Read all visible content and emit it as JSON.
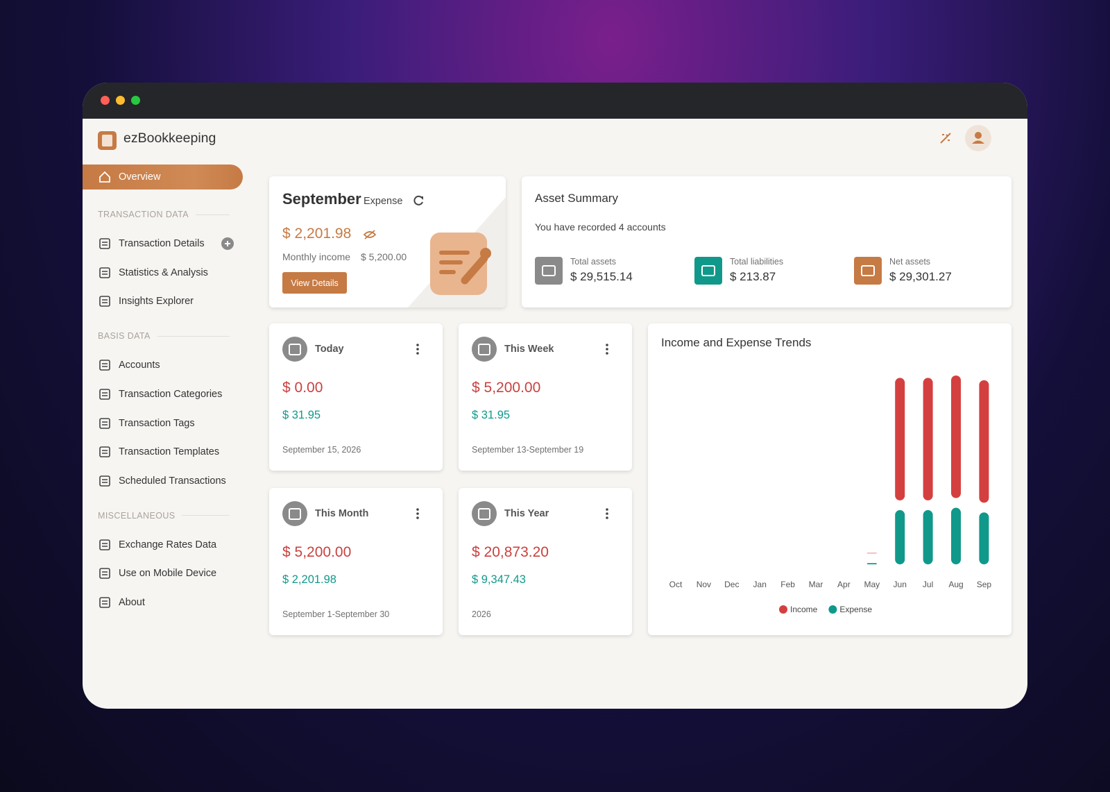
{
  "app": {
    "name": "ezBookkeeping"
  },
  "sidebar": {
    "active": "Overview",
    "sections": [
      {
        "title": "TRANSACTION DATA",
        "items": [
          "Transaction Details",
          "Statistics & Analysis",
          "Insights Explorer"
        ]
      },
      {
        "title": "BASIS DATA",
        "items": [
          "Accounts",
          "Transaction Categories",
          "Transaction Tags",
          "Transaction Templates",
          "Scheduled Transactions"
        ]
      },
      {
        "title": "MISCELLANEOUS",
        "items": [
          "Exchange Rates Data",
          "Use on Mobile Device",
          "About"
        ]
      }
    ]
  },
  "expense_card": {
    "month": "September",
    "label": "Expense",
    "amount": "$ 2,201.98",
    "income_label": "Monthly income",
    "income": "$ 5,200.00",
    "button": "View Details"
  },
  "asset_summary": {
    "title": "Asset Summary",
    "subtitle": "You have recorded 4 accounts",
    "items": [
      {
        "label": "Total assets",
        "value": "$ 29,515.14"
      },
      {
        "label": "Total liabilities",
        "value": "$ 213.87"
      },
      {
        "label": "Net assets",
        "value": "$ 29,301.27"
      }
    ]
  },
  "periods": [
    {
      "title": "Today",
      "income": "$ 0.00",
      "expense": "$ 31.95",
      "range": "September 15, 2026"
    },
    {
      "title": "This Week",
      "income": "$ 5,200.00",
      "expense": "$ 31.95",
      "range": "September 13-September 19"
    },
    {
      "title": "This Month",
      "income": "$ 5,200.00",
      "expense": "$ 2,201.98",
      "range": "September 1-September 30"
    },
    {
      "title": "This Year",
      "income": "$ 20,873.20",
      "expense": "$ 9,347.43",
      "range": "2026"
    }
  ],
  "chart_data": {
    "type": "bar",
    "stacked": true,
    "title": "Income and Expense Trends",
    "categories": [
      "Oct",
      "Nov",
      "Dec",
      "Jan",
      "Feb",
      "Mar",
      "Apr",
      "May",
      "Jun",
      "Jul",
      "Aug",
      "Sep"
    ],
    "series": [
      {
        "name": "Income",
        "color": "#d4403f",
        "values": [
          0,
          0,
          0,
          0,
          0,
          0,
          0,
          20,
          5200,
          5200,
          5200,
          5200
        ]
      },
      {
        "name": "Expense",
        "color": "#10998a",
        "values": [
          0,
          0,
          0,
          0,
          0,
          0,
          0,
          50,
          2300,
          2300,
          2400,
          2201.98
        ]
      }
    ],
    "legend": "bottom"
  }
}
